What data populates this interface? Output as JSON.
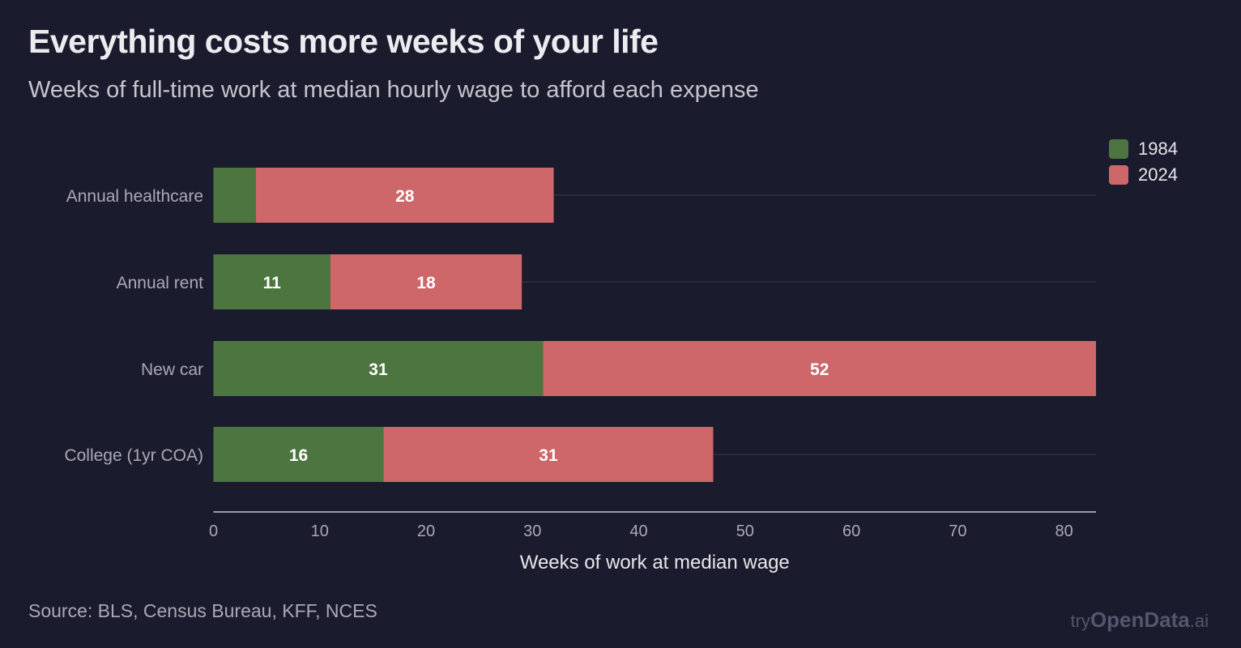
{
  "title": "Everything costs more weeks of your life",
  "subtitle": "Weeks of full-time work at median hourly wage to afford each expense",
  "source": "Source: BLS, Census Bureau, KFF, NCES",
  "brand": {
    "prefix": "try",
    "name": "OpenData",
    "suffix": ".ai"
  },
  "colors": {
    "1984": "#4d7540",
    "2024": "#cd6769",
    "background": "#1b1b2e"
  },
  "chart_data": {
    "type": "bar",
    "orientation": "horizontal",
    "stacked": true,
    "categories": [
      "Annual healthcare",
      "Annual rent",
      "New car",
      "College (1yr COA)"
    ],
    "series": [
      {
        "name": "1984",
        "values": [
          4,
          11,
          31,
          16
        ],
        "labels": [
          "",
          "11",
          "31",
          "16"
        ]
      },
      {
        "name": "2024",
        "values": [
          28,
          18,
          52,
          31
        ],
        "labels": [
          "28",
          "18",
          "52",
          "31"
        ]
      }
    ],
    "xlabel": "Weeks of work at median wage",
    "xlim": [
      0,
      83
    ],
    "xticks": [
      0,
      10,
      20,
      30,
      40,
      50,
      60,
      70,
      80
    ],
    "legend_position": "top-right",
    "grid": true
  }
}
